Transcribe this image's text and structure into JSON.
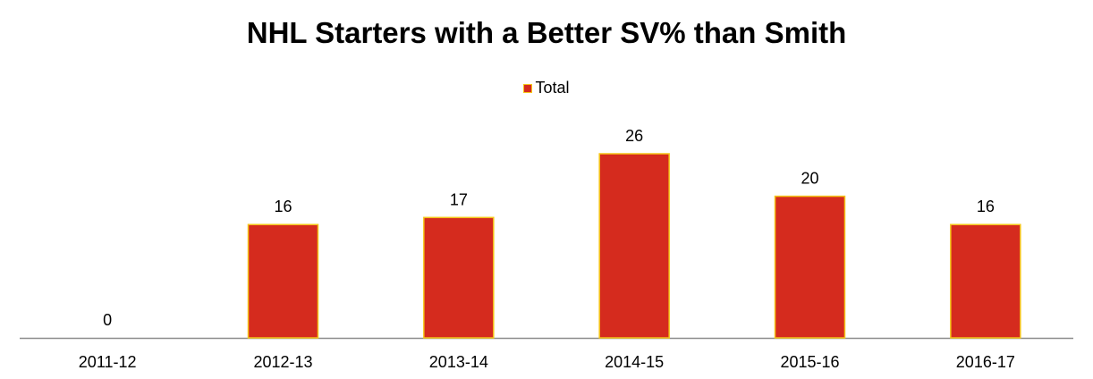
{
  "chart_data": {
    "type": "bar",
    "title": "NHL Starters with a Better SV% than Smith",
    "categories": [
      "2011-12",
      "2012-13",
      "2013-14",
      "2014-15",
      "2015-16",
      "2016-17"
    ],
    "series": [
      {
        "name": "Total",
        "values": [
          0,
          16,
          17,
          26,
          20,
          16
        ],
        "color": "#d52b1e",
        "border_color": "#f5c518"
      }
    ],
    "data_labels": [
      "0",
      "16",
      "17",
      "26",
      "20",
      "16"
    ],
    "xlabel": "",
    "ylabel": "",
    "ylim": [
      0,
      30
    ],
    "grid": false,
    "legend_position": "top"
  }
}
